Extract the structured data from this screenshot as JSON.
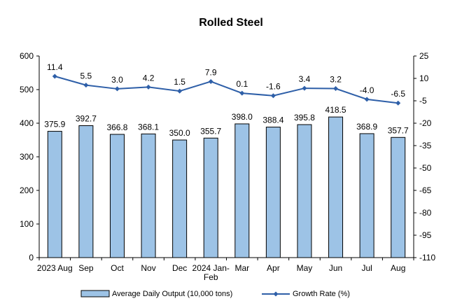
{
  "chart_data": {
    "type": "bar+line",
    "title": "Rolled Steel",
    "categories": [
      [
        "2023 Aug"
      ],
      [
        "Sep"
      ],
      [
        "Oct"
      ],
      [
        "Nov"
      ],
      [
        "Dec"
      ],
      [
        "2024 Jan-",
        "Feb"
      ],
      [
        "Mar"
      ],
      [
        "Apr"
      ],
      [
        "May"
      ],
      [
        "Jun"
      ],
      [
        "Jul"
      ],
      [
        "Aug"
      ]
    ],
    "series": [
      {
        "name": "Average Daily Output (10,000 tons)",
        "type": "bar",
        "axis": "left",
        "values": [
          375.9,
          392.7,
          366.8,
          368.1,
          350.0,
          355.7,
          398.0,
          388.4,
          395.8,
          418.5,
          368.9,
          357.7
        ],
        "labels": [
          "375.9",
          "392.7",
          "366.8",
          "368.1",
          "350.0",
          "355.7",
          "398.0",
          "388.4",
          "395.8",
          "418.5",
          "368.9",
          "357.7"
        ],
        "color": "#9DC3E6"
      },
      {
        "name": "Growth Rate (%)",
        "type": "line",
        "axis": "right",
        "values": [
          11.4,
          5.5,
          3.0,
          4.2,
          1.5,
          7.9,
          0.1,
          -1.6,
          3.4,
          3.2,
          -4.0,
          -6.5
        ],
        "labels": [
          "11.4",
          "5.5",
          "3.0",
          "4.2",
          "1.5",
          "7.9",
          "0.1",
          "-1.6",
          "3.4",
          "3.2",
          "-4.0",
          "-6.5"
        ],
        "color": "#2E5FA8"
      }
    ],
    "y_left": {
      "min": 0,
      "max": 600,
      "ticks": [
        "0",
        "100",
        "200",
        "300",
        "400",
        "500",
        "600"
      ]
    },
    "y_right": {
      "min": -110,
      "max": 25,
      "ticks": [
        "-110",
        "-95",
        "-80",
        "-65",
        "-50",
        "-35",
        "-20",
        "-5",
        "10",
        "25"
      ]
    },
    "grid": false,
    "legend_position": "bottom"
  }
}
